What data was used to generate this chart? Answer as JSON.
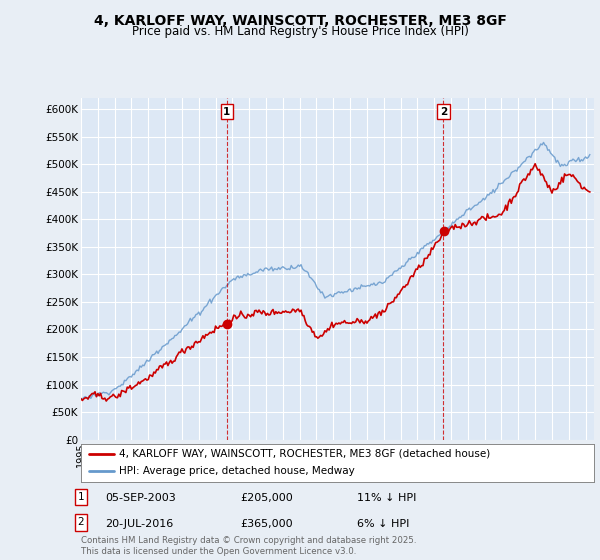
{
  "title": "4, KARLOFF WAY, WAINSCOTT, ROCHESTER, ME3 8GF",
  "subtitle": "Price paid vs. HM Land Registry's House Price Index (HPI)",
  "yticks": [
    0,
    50000,
    100000,
    150000,
    200000,
    250000,
    300000,
    350000,
    400000,
    450000,
    500000,
    550000,
    600000
  ],
  "ytick_labels": [
    "£0",
    "£50K",
    "£100K",
    "£150K",
    "£200K",
    "£250K",
    "£300K",
    "£350K",
    "£400K",
    "£450K",
    "£500K",
    "£550K",
    "£600K"
  ],
  "xlim_start": 1995.0,
  "xlim_end": 2025.5,
  "ylim_min": 0,
  "ylim_max": 620000,
  "sale1_year": 2003.67,
  "sale1_price": 205000,
  "sale1_label": "1",
  "sale1_date": "05-SEP-2003",
  "sale1_pct": "11% ↓ HPI",
  "sale2_year": 2016.55,
  "sale2_price": 365000,
  "sale2_label": "2",
  "sale2_date": "20-JUL-2016",
  "sale2_pct": "6% ↓ HPI",
  "legend_property": "4, KARLOFF WAY, WAINSCOTT, ROCHESTER, ME3 8GF (detached house)",
  "legend_hpi": "HPI: Average price, detached house, Medway",
  "footnote": "Contains HM Land Registry data © Crown copyright and database right 2025.\nThis data is licensed under the Open Government Licence v3.0.",
  "line_color_property": "#cc0000",
  "line_color_hpi": "#6699cc",
  "dot_color": "#cc0000",
  "vline_color": "#cc0000",
  "background_color": "#e8eef5",
  "plot_bg_color": "#dde8f5",
  "grid_color": "#ffffff"
}
